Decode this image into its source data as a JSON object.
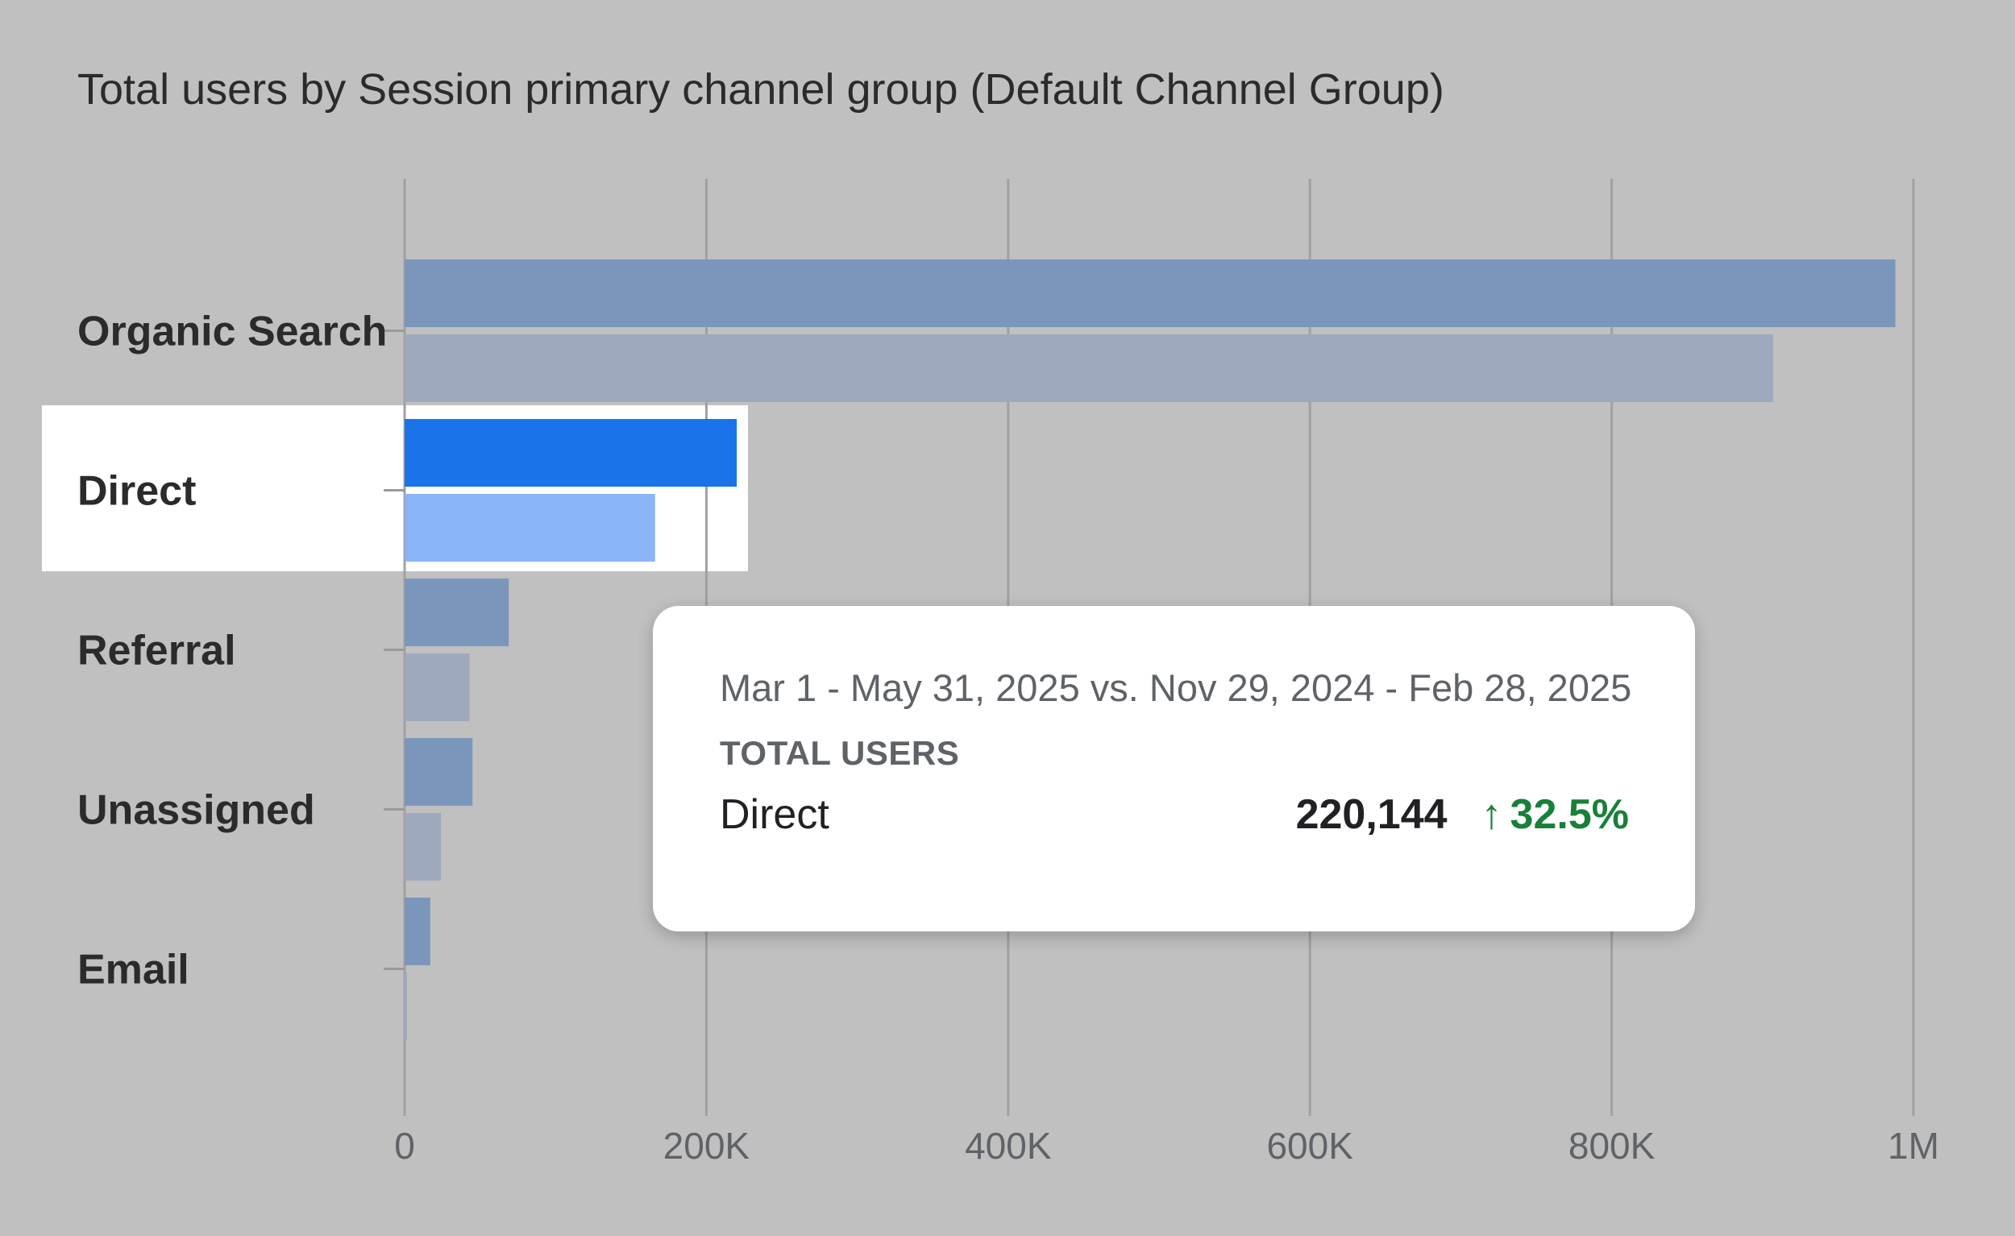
{
  "chart_data": {
    "type": "bar",
    "orientation": "horizontal",
    "title": "Total users by Session primary channel group (Default Channel Group)",
    "categories": [
      "Organic Search",
      "Direct",
      "Referral",
      "Unassigned",
      "Email"
    ],
    "series": [
      {
        "values": [
          988000,
          220144,
          69000,
          45000,
          17000
        ]
      },
      {
        "values": [
          907000,
          166000,
          43000,
          24000,
          1000
        ]
      }
    ],
    "xlim": [
      0,
      1000000
    ],
    "xticks": [
      0,
      200000,
      400000,
      600000,
      800000,
      1000000
    ],
    "xtick_labels": [
      "0",
      "200K",
      "400K",
      "600K",
      "800K",
      "1M"
    ],
    "grid": true,
    "highlighted_category": "Direct",
    "colors": {
      "current": "#7b96bb",
      "previous": "#9ea9bd",
      "current_highlight": "#1a73e8",
      "previous_highlight": "#8ab4f8",
      "grid": "#a0a0a0",
      "background": "#c0c0c0"
    }
  },
  "tooltip": {
    "date_range": "Mar 1 - May 31, 2025 vs. Nov 29, 2024 - Feb 28, 2025",
    "metric": "TOTAL USERS",
    "category": "Direct",
    "value": "220,144",
    "change": "32.5%",
    "change_icon": "arrow-up-icon"
  }
}
